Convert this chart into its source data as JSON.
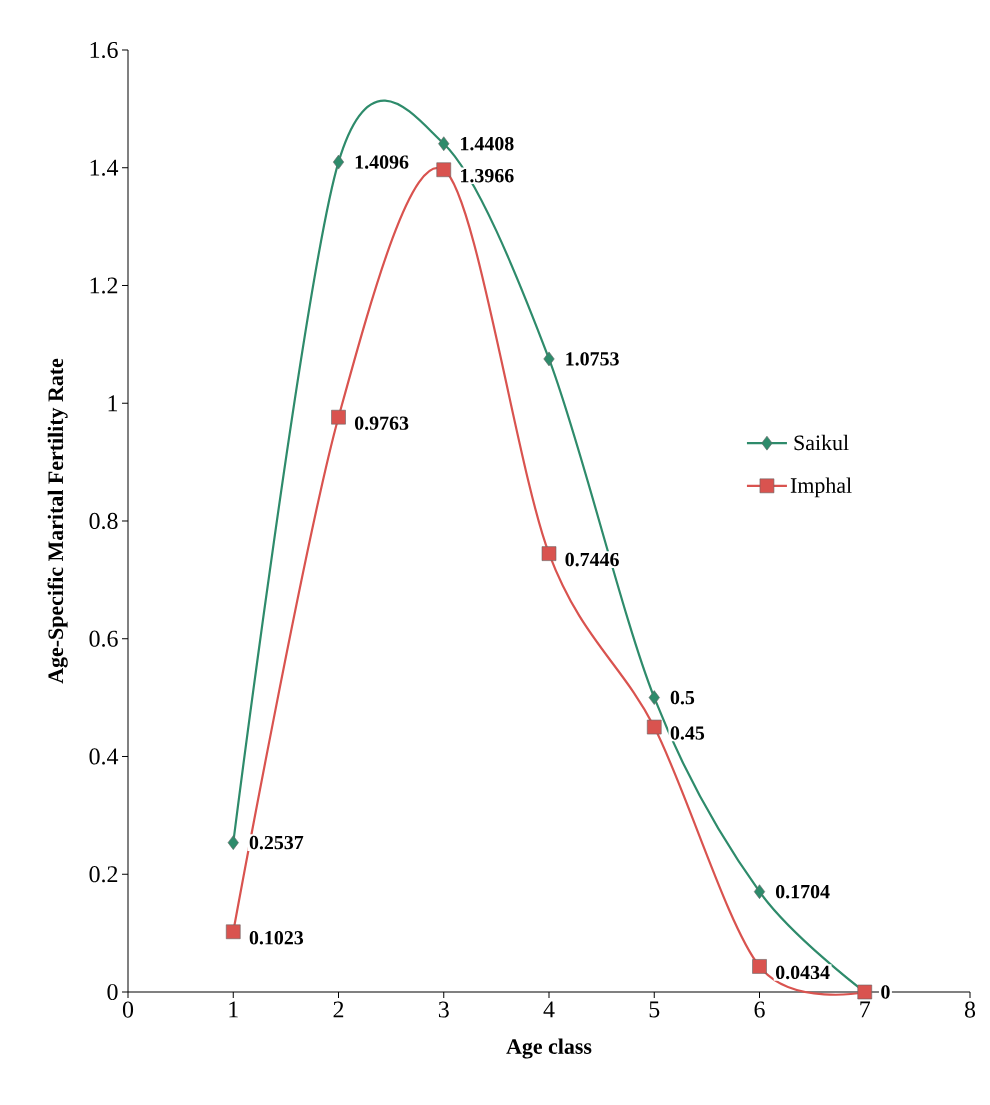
{
  "chart_data": {
    "type": "line",
    "xlabel": "Age class",
    "ylabel": "Age-Specific Marital Fertility Rate",
    "x": [
      1,
      2,
      3,
      4,
      5,
      6,
      7
    ],
    "series": [
      {
        "name": "Saikul",
        "color": "#2e8b6b",
        "marker": "diamond",
        "values": [
          0.2537,
          1.4096,
          1.4408,
          1.0753,
          0.5,
          0.1704,
          0
        ],
        "value_labels": [
          "0.2537",
          "1.4096",
          "1.4408",
          "1.0753",
          "0.5",
          "0.1704",
          "0"
        ]
      },
      {
        "name": "Imphal",
        "color": "#d9534f",
        "marker": "square",
        "values": [
          0.1023,
          0.9763,
          1.3966,
          0.7446,
          0.45,
          0.0434,
          0
        ],
        "value_labels": [
          "0.1023",
          "0.9763",
          "1.3966",
          "0.7446",
          "0.45",
          "0.0434",
          null
        ]
      }
    ],
    "xlim": [
      0,
      8
    ],
    "ylim": [
      0,
      1.6
    ],
    "xticks": [
      0,
      1,
      2,
      3,
      4,
      5,
      6,
      7,
      8
    ],
    "yticks": [
      0,
      0.2,
      0.4,
      0.6,
      0.8,
      1,
      1.2,
      1.4,
      1.6
    ],
    "grid": false,
    "legend": "right",
    "line_style": "solid"
  }
}
